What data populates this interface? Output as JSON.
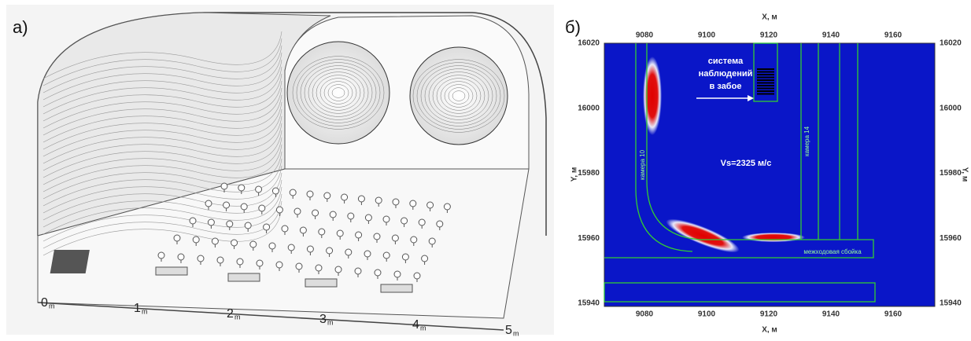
{
  "panel_a": {
    "label": "а)",
    "scale_labels": [
      "0",
      "1",
      "2",
      "3",
      "4",
      "5"
    ],
    "unit": "m"
  },
  "panel_b": {
    "label": "б)",
    "x_axis_title": "X, м",
    "y_axis_title": "Y, м",
    "x_ticks": [
      "9080",
      "9100",
      "9120",
      "9140",
      "9160"
    ],
    "y_ticks": [
      "16020",
      "16000",
      "15980",
      "15960",
      "15940"
    ],
    "annotations": {
      "system": [
        "система",
        "наблюдений",
        "в забое"
      ],
      "velocity": "Vs=2325 м/с",
      "chamber_10": "камера 10",
      "chamber_14": "камера 14",
      "crosscut": "межходовая сбойка"
    }
  }
}
